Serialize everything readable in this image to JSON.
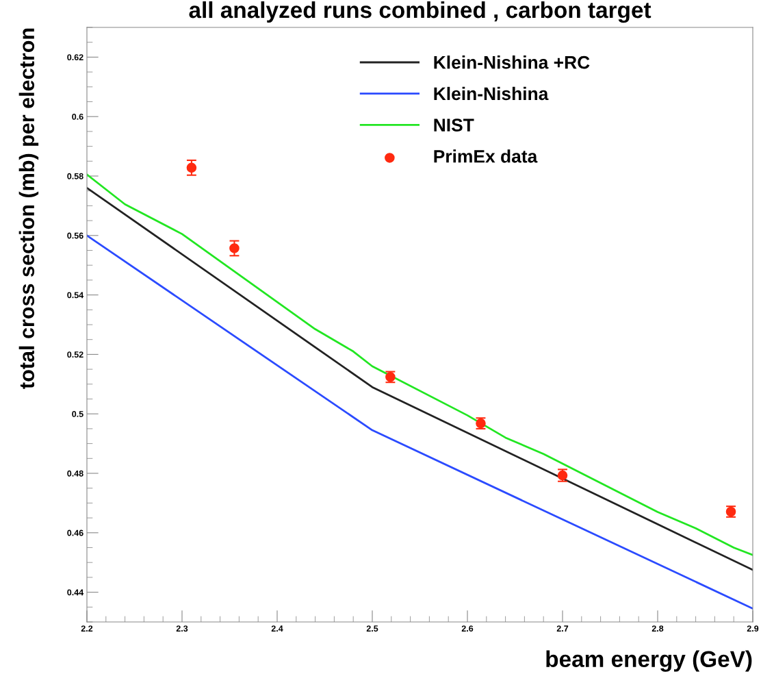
{
  "chart_data": {
    "type": "line",
    "title": "all analyzed runs combined , carbon target",
    "xlabel": "beam energy (GeV)",
    "ylabel": "total cross section (mb) per electron",
    "xlim": [
      2.2,
      2.9
    ],
    "xticks": [
      2.2,
      2.3,
      2.4,
      2.5,
      2.6,
      2.7,
      2.8,
      2.9
    ],
    "ylim": [
      0.43,
      0.63
    ],
    "yticks": [
      0.44,
      0.46,
      0.48,
      0.5,
      0.52,
      0.54,
      0.56,
      0.58,
      0.6,
      0.62
    ],
    "legend": "top right",
    "grid": false,
    "series": [
      {
        "name": "Klein-Nishina +RC",
        "color": "#222222",
        "x": [
          2.2,
          2.5,
          2.9
        ],
        "values": [
          0.576,
          0.509,
          0.4475
        ]
      },
      {
        "name": "Klein-Nishina",
        "color": "#2b4bff",
        "x": [
          2.2,
          2.5,
          2.9
        ],
        "values": [
          0.56,
          0.4945,
          0.4345
        ]
      },
      {
        "name": "NIST",
        "color": "#22e622",
        "x": [
          2.2,
          2.24,
          2.3,
          2.44,
          2.48,
          2.5,
          2.6,
          2.64,
          2.68,
          2.8,
          2.84,
          2.88,
          2.9
        ],
        "values": [
          0.5805,
          0.5705,
          0.5605,
          0.5285,
          0.521,
          0.516,
          0.4995,
          0.492,
          0.4865,
          0.467,
          0.4615,
          0.455,
          0.4525
        ]
      },
      {
        "name": "PrimEx data",
        "type": "scatter",
        "marker": "circle",
        "color": "#ff2a10",
        "x": [
          2.31,
          2.355,
          2.519,
          2.614,
          2.7,
          2.877
        ],
        "values": [
          0.5828,
          0.5557,
          0.5124,
          0.4968,
          0.4793,
          0.4671
        ],
        "errors": [
          0.0025,
          0.0025,
          0.0018,
          0.0018,
          0.002,
          0.0018
        ]
      }
    ]
  }
}
